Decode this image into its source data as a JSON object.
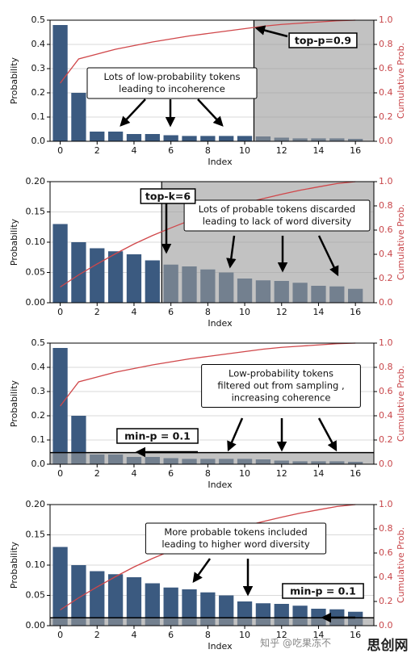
{
  "chart_data": [
    {
      "type": "bar",
      "xlabel": "Index",
      "ylabel": "Probability",
      "y2label": "Cumulative Prob.",
      "x": [
        0,
        1,
        2,
        3,
        4,
        5,
        6,
        7,
        8,
        9,
        10,
        11,
        12,
        13,
        14,
        15,
        16
      ],
      "series": [
        {
          "color": "#3b5a80",
          "values": [
            0.48,
            0.2,
            0.04,
            0.04,
            0.03,
            0.03,
            0.025,
            0.022,
            0.022,
            0.022,
            0.022,
            0.02,
            0.015,
            0.012,
            0.012,
            0.012,
            0.01
          ]
        },
        {
          "type": "line",
          "axis": "y2",
          "color": "#d0474a",
          "values": [
            0.48,
            0.68,
            0.72,
            0.76,
            0.79,
            0.82,
            0.845,
            0.87,
            0.89,
            0.91,
            0.93,
            0.95,
            0.965,
            0.975,
            0.985,
            0.995,
            1.0
          ]
        }
      ],
      "xlim": [
        -0.55,
        17
      ],
      "xticks": [
        0,
        2,
        4,
        6,
        8,
        10,
        12,
        14,
        16
      ],
      "ylim": [
        0,
        0.5
      ],
      "yticks": [
        {
          "value": 0,
          "label": "0.0"
        },
        0.1,
        0.2,
        0.3,
        0.4,
        0.5
      ],
      "y2lim": [
        0,
        1
      ],
      "y2ticks": [
        {
          "value": 0,
          "label": "0.0"
        },
        0.2,
        0.4,
        0.6,
        0.8,
        {
          "value": 1,
          "label": "1.0"
        }
      ],
      "grid": true,
      "shade_from_x": 10.5,
      "annotation": [
        "Lots of low-probability tokens",
        "leading to incoherence"
      ],
      "marker_label": "top-p=0.9"
    },
    {
      "type": "bar",
      "xlabel": "Index",
      "ylabel": "Probability",
      "y2label": "Cumulative Prob.",
      "x": [
        0,
        1,
        2,
        3,
        4,
        5,
        6,
        7,
        8,
        9,
        10,
        11,
        12,
        13,
        14,
        15,
        16
      ],
      "series": [
        {
          "color": "#3b5a80",
          "values": [
            0.13,
            0.1,
            0.09,
            0.085,
            0.08,
            0.07,
            0.063,
            0.06,
            0.055,
            0.05,
            0.04,
            0.037,
            0.036,
            0.033,
            0.028,
            0.027,
            0.023
          ]
        },
        {
          "type": "line",
          "axis": "y2",
          "color": "#d0474a",
          "values": [
            0.13,
            0.23,
            0.32,
            0.405,
            0.485,
            0.555,
            0.618,
            0.678,
            0.733,
            0.783,
            0.823,
            0.86,
            0.896,
            0.929,
            0.957,
            0.984,
            1.0
          ]
        }
      ],
      "xlim": [
        -0.55,
        17
      ],
      "xticks": [
        0,
        2,
        4,
        6,
        8,
        10,
        12,
        14,
        16
      ],
      "ylim": [
        0,
        0.2
      ],
      "yticks": [
        {
          "value": 0,
          "label": "0.00"
        },
        0.05,
        {
          "value": 0.1,
          "label": "0.10"
        },
        0.15,
        {
          "value": 0.2,
          "label": "0.20"
        }
      ],
      "y2lim": [
        0,
        1
      ],
      "y2ticks": [
        {
          "value": 0,
          "label": "0.0"
        },
        0.2,
        0.4,
        0.6,
        0.8,
        {
          "value": 1,
          "label": "1.0"
        }
      ],
      "grid": true,
      "shade_from_x": 5.5,
      "annotation": [
        "Lots of probable tokens discarded",
        "leading to lack of word diversity"
      ],
      "marker_label": "top-k=6"
    },
    {
      "type": "bar",
      "xlabel": "Index",
      "ylabel": "Probability",
      "y2label": "Cumulative Prob.",
      "x": [
        0,
        1,
        2,
        3,
        4,
        5,
        6,
        7,
        8,
        9,
        10,
        11,
        12,
        13,
        14,
        15,
        16
      ],
      "series": [
        {
          "color": "#3b5a80",
          "values": [
            0.48,
            0.2,
            0.04,
            0.04,
            0.03,
            0.03,
            0.025,
            0.022,
            0.022,
            0.022,
            0.022,
            0.02,
            0.015,
            0.012,
            0.012,
            0.012,
            0.01
          ]
        },
        {
          "type": "line",
          "axis": "y2",
          "color": "#d0474a",
          "values": [
            0.48,
            0.68,
            0.72,
            0.76,
            0.79,
            0.82,
            0.845,
            0.87,
            0.89,
            0.91,
            0.93,
            0.95,
            0.965,
            0.975,
            0.985,
            0.995,
            1.0
          ]
        }
      ],
      "xlim": [
        -0.55,
        17
      ],
      "xticks": [
        0,
        2,
        4,
        6,
        8,
        10,
        12,
        14,
        16
      ],
      "ylim": [
        0,
        0.5
      ],
      "yticks": [
        {
          "value": 0,
          "label": "0.0"
        },
        0.1,
        0.2,
        0.3,
        0.4,
        0.5
      ],
      "y2lim": [
        0,
        1
      ],
      "y2ticks": [
        {
          "value": 0,
          "label": "0.0"
        },
        0.2,
        0.4,
        0.6,
        0.8,
        {
          "value": 1,
          "label": "1.0"
        }
      ],
      "grid": true,
      "threshold": 0.048,
      "annotation": [
        "Low-probability tokens",
        "filtered out from sampling ,",
        "increasing coherence"
      ],
      "marker_label": "min-p = 0.1"
    },
    {
      "type": "bar",
      "xlabel": "Index",
      "ylabel": "Probability",
      "y2label": "Cumulative Prob.",
      "x": [
        0,
        1,
        2,
        3,
        4,
        5,
        6,
        7,
        8,
        9,
        10,
        11,
        12,
        13,
        14,
        15,
        16
      ],
      "series": [
        {
          "color": "#3b5a80",
          "values": [
            0.13,
            0.1,
            0.09,
            0.085,
            0.08,
            0.07,
            0.063,
            0.06,
            0.055,
            0.05,
            0.04,
            0.037,
            0.036,
            0.033,
            0.028,
            0.027,
            0.023
          ]
        },
        {
          "type": "line",
          "axis": "y2",
          "color": "#d0474a",
          "values": [
            0.13,
            0.23,
            0.32,
            0.405,
            0.485,
            0.555,
            0.618,
            0.678,
            0.733,
            0.783,
            0.823,
            0.86,
            0.896,
            0.929,
            0.957,
            0.984,
            1.0
          ]
        }
      ],
      "xlim": [
        -0.55,
        17
      ],
      "xticks": [
        0,
        2,
        4,
        6,
        8,
        10,
        12,
        14,
        16
      ],
      "ylim": [
        0,
        0.2
      ],
      "yticks": [
        {
          "value": 0,
          "label": "0.00"
        },
        0.05,
        {
          "value": 0.1,
          "label": "0.10"
        },
        0.15,
        {
          "value": 0.2,
          "label": "0.20"
        }
      ],
      "y2lim": [
        0,
        1
      ],
      "y2ticks": [
        {
          "value": 0,
          "label": "0.0"
        },
        0.2,
        0.4,
        0.6,
        0.8,
        {
          "value": 1,
          "label": "1.0"
        }
      ],
      "grid": true,
      "threshold": 0.013,
      "annotation": [
        "More probable tokens included",
        "leading to higher word diversity"
      ],
      "marker_label": "min-p = 0.1"
    }
  ],
  "watermark": {
    "site": "知乎 @吃果冻不",
    "logo": "思创网"
  }
}
